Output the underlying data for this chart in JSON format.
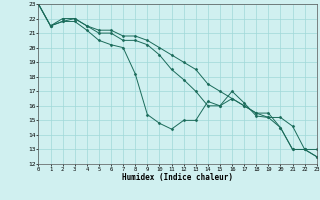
{
  "title": "",
  "xlabel": "Humidex (Indice chaleur)",
  "ylabel": "",
  "xlim": [
    0,
    23
  ],
  "ylim": [
    12,
    23
  ],
  "xticks": [
    0,
    1,
    2,
    3,
    4,
    5,
    6,
    7,
    8,
    9,
    10,
    11,
    12,
    13,
    14,
    15,
    16,
    17,
    18,
    19,
    20,
    21,
    22,
    23
  ],
  "yticks": [
    12,
    13,
    14,
    15,
    16,
    17,
    18,
    19,
    20,
    21,
    22,
    23
  ],
  "bg_color": "#d0f0f0",
  "grid_color": "#a0d8d8",
  "line_color": "#1a6b5a",
  "series": [
    {
      "x": [
        0,
        1,
        2,
        3,
        4,
        5,
        6,
        7,
        8,
        9,
        10,
        11,
        12,
        13,
        14,
        15,
        16,
        17,
        18,
        19,
        20,
        21,
        22,
        23
      ],
      "y": [
        23,
        21.5,
        21.8,
        21.8,
        21.2,
        20.5,
        20.2,
        20.0,
        18.2,
        15.4,
        14.8,
        14.4,
        15.0,
        15.0,
        16.3,
        16.0,
        17.0,
        16.2,
        15.3,
        15.2,
        15.2,
        14.6,
        13.0,
        12.5
      ]
    },
    {
      "x": [
        0,
        1,
        2,
        3,
        4,
        5,
        6,
        7,
        8,
        9,
        10,
        11,
        12,
        13,
        14,
        15,
        16,
        17,
        18,
        19,
        20,
        21,
        22,
        23
      ],
      "y": [
        23,
        21.5,
        21.8,
        22.0,
        21.5,
        21.0,
        21.0,
        20.5,
        20.5,
        20.2,
        19.5,
        18.5,
        17.8,
        17.0,
        16.0,
        16.0,
        16.5,
        16.0,
        15.5,
        15.5,
        14.5,
        13.0,
        13.0,
        13.0
      ]
    },
    {
      "x": [
        0,
        1,
        2,
        3,
        4,
        5,
        6,
        7,
        8,
        9,
        10,
        11,
        12,
        13,
        14,
        15,
        16,
        17,
        18,
        19,
        20,
        21,
        22,
        23
      ],
      "y": [
        23,
        21.5,
        22.0,
        22.0,
        21.5,
        21.2,
        21.2,
        20.8,
        20.8,
        20.5,
        20.0,
        19.5,
        19.0,
        18.5,
        17.5,
        17.0,
        16.5,
        16.0,
        15.5,
        15.2,
        14.5,
        13.0,
        13.0,
        12.5
      ]
    }
  ]
}
